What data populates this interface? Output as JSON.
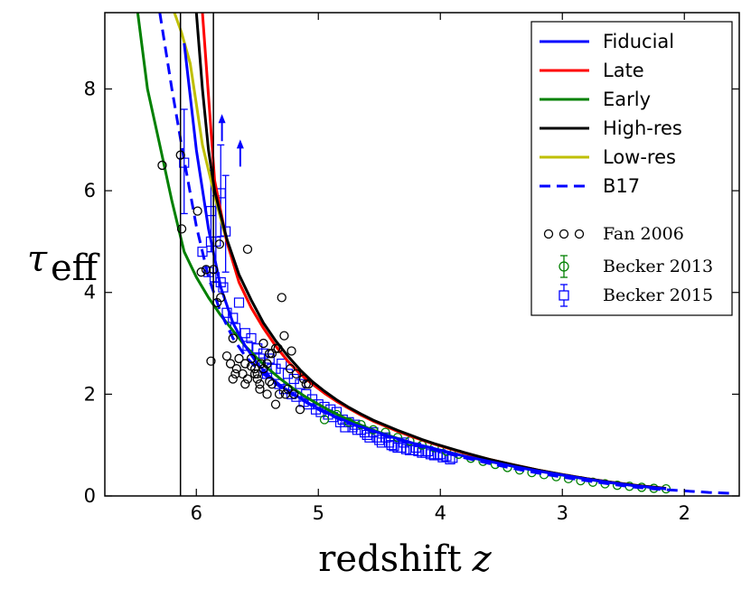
{
  "chart_data": {
    "type": "line",
    "title": "",
    "xlabel": "redshift",
    "xlabel_var": "z",
    "ylabel_main": "τ",
    "ylabel_sub": "eff",
    "xlim": [
      6.75,
      1.55
    ],
    "ylim": [
      0,
      9.5
    ],
    "x_inverted": true,
    "xticks": [
      6,
      5,
      4,
      3,
      2
    ],
    "xtick_labels": [
      "6",
      "5",
      "4",
      "3",
      "2"
    ],
    "yticks": [
      0,
      2,
      4,
      6,
      8
    ],
    "ytick_labels": [
      "0",
      "2",
      "4",
      "6",
      "8"
    ],
    "legend_position": "top-right",
    "vlines": [
      6.13,
      5.86
    ],
    "series": [
      {
        "name": "Fiducial",
        "color": "#0000ff",
        "dash": "solid",
        "x": [
          6.1,
          6.0,
          5.9,
          5.8,
          5.7,
          5.6,
          5.5,
          5.4,
          5.3,
          5.2,
          5.1,
          5.0,
          4.9,
          4.8,
          4.7,
          4.6,
          4.5,
          4.4,
          4.3,
          4.2,
          4.1,
          4.0,
          3.8,
          3.6,
          3.4,
          3.2,
          3.0,
          2.8,
          2.6,
          2.4,
          2.15
        ],
        "y": [
          8.9,
          6.8,
          5.25,
          4.1,
          3.4,
          2.95,
          2.6,
          2.35,
          2.15,
          2.0,
          1.85,
          1.72,
          1.6,
          1.5,
          1.4,
          1.32,
          1.24,
          1.16,
          1.09,
          1.02,
          0.96,
          0.9,
          0.78,
          0.68,
          0.58,
          0.49,
          0.41,
          0.33,
          0.26,
          0.2,
          0.14
        ]
      },
      {
        "name": "Late",
        "color": "#ff0000",
        "dash": "solid",
        "x": [
          5.95,
          5.85,
          5.75,
          5.65,
          5.55,
          5.45,
          5.35,
          5.25,
          5.15,
          5.05,
          4.95,
          4.85,
          4.75,
          4.65,
          4.55,
          4.45,
          4.35,
          4.25,
          4.15,
          4.05,
          3.8,
          3.6,
          3.4,
          3.2,
          3.0,
          2.8,
          2.6,
          2.4,
          2.15
        ],
        "y": [
          9.5,
          6.2,
          5.0,
          4.2,
          3.7,
          3.3,
          2.95,
          2.65,
          2.4,
          2.2,
          2.02,
          1.86,
          1.72,
          1.59,
          1.47,
          1.37,
          1.27,
          1.18,
          1.1,
          1.02,
          0.84,
          0.72,
          0.61,
          0.51,
          0.42,
          0.34,
          0.27,
          0.21,
          0.15
        ]
      },
      {
        "name": "Early",
        "color": "#008000",
        "dash": "solid",
        "x": [
          6.48,
          6.4,
          6.3,
          6.2,
          6.1,
          6.0,
          5.9,
          5.8,
          5.7,
          5.6,
          5.5,
          5.4,
          5.3,
          5.2,
          5.1,
          5.0,
          4.9,
          4.8,
          4.7,
          4.6,
          4.5,
          4.4,
          4.3,
          4.2,
          4.1,
          4.0,
          3.8,
          3.6,
          3.4,
          3.2,
          3.0,
          2.8,
          2.6,
          2.4,
          2.15
        ],
        "y": [
          9.5,
          8.0,
          6.9,
          5.8,
          4.8,
          4.3,
          3.9,
          3.55,
          3.25,
          2.95,
          2.7,
          2.48,
          2.28,
          2.1,
          1.94,
          1.8,
          1.67,
          1.55,
          1.44,
          1.34,
          1.25,
          1.17,
          1.09,
          1.02,
          0.96,
          0.9,
          0.78,
          0.68,
          0.58,
          0.49,
          0.41,
          0.33,
          0.26,
          0.2,
          0.14
        ]
      },
      {
        "name": "High-res",
        "color": "#000000",
        "dash": "solid",
        "x": [
          6.0,
          5.95,
          5.9,
          5.85,
          5.75,
          5.65,
          5.55,
          5.45,
          5.35,
          5.25,
          5.15,
          5.05,
          4.95,
          4.85,
          4.75,
          4.65,
          4.55,
          4.45,
          4.35,
          4.25,
          4.15,
          4.05,
          3.8,
          3.6,
          3.4,
          3.2,
          3.0,
          2.8,
          2.6,
          2.4,
          2.15
        ],
        "y": [
          9.5,
          8.0,
          6.8,
          6.0,
          5.05,
          4.35,
          3.85,
          3.4,
          3.05,
          2.75,
          2.48,
          2.25,
          2.06,
          1.89,
          1.74,
          1.61,
          1.49,
          1.39,
          1.29,
          1.2,
          1.11,
          1.03,
          0.85,
          0.72,
          0.61,
          0.51,
          0.42,
          0.34,
          0.27,
          0.21,
          0.15
        ]
      },
      {
        "name": "Low-res",
        "color": "#bfbf00",
        "dash": "solid",
        "x": [
          6.18,
          6.12,
          6.05,
          6.0,
          5.95,
          5.85,
          5.75,
          5.65,
          5.55,
          5.45,
          5.35,
          5.25,
          5.15,
          5.05,
          4.95,
          4.85,
          4.75,
          4.65,
          4.55,
          4.45,
          4.35,
          4.25,
          4.15,
          4.05,
          3.8,
          3.6,
          3.4,
          3.2,
          3.0,
          2.8,
          2.6,
          2.4,
          2.15
        ],
        "y": [
          9.5,
          9.1,
          8.5,
          7.7,
          6.9,
          5.9,
          5.0,
          4.2,
          3.7,
          3.3,
          2.95,
          2.65,
          2.4,
          2.2,
          2.02,
          1.86,
          1.72,
          1.59,
          1.47,
          1.37,
          1.27,
          1.18,
          1.1,
          1.02,
          0.84,
          0.72,
          0.61,
          0.51,
          0.42,
          0.34,
          0.27,
          0.21,
          0.15
        ]
      },
      {
        "name": "B17",
        "color": "#0000ff",
        "dash": "dashed",
        "x": [
          6.3,
          6.2,
          6.1,
          6.0,
          5.9,
          5.8,
          5.7,
          5.6,
          5.5,
          5.4,
          5.3,
          5.2,
          5.1,
          5.0,
          4.8,
          4.6,
          4.4,
          4.2,
          4.0,
          3.8,
          3.6,
          3.4,
          3.2,
          3.0,
          2.8,
          2.6,
          2.4,
          2.2,
          2.0,
          1.8,
          1.6
        ],
        "y": [
          9.5,
          8.0,
          6.6,
          5.3,
          4.3,
          3.6,
          3.1,
          2.75,
          2.5,
          2.3,
          2.12,
          1.98,
          1.84,
          1.7,
          1.48,
          1.3,
          1.14,
          1.0,
          0.87,
          0.75,
          0.64,
          0.54,
          0.45,
          0.37,
          0.3,
          0.23,
          0.17,
          0.13,
          0.1,
          0.07,
          0.05
        ]
      }
    ],
    "scatter": [
      {
        "name": "Fan 2006",
        "color": "#000000",
        "marker": "circle",
        "x": [
          6.28,
          6.13,
          6.12,
          5.99,
          5.96,
          5.92,
          5.86,
          5.83,
          5.8,
          5.75,
          5.72,
          5.7,
          5.67,
          5.65,
          5.62,
          5.6,
          5.58,
          5.55,
          5.52,
          5.5,
          5.48,
          5.45,
          5.42,
          5.4,
          5.38,
          5.35,
          5.32,
          5.3,
          5.28,
          5.25,
          5.22,
          5.2,
          5.18,
          5.15,
          5.12,
          5.1,
          5.08,
          5.6,
          5.55,
          5.5,
          5.45,
          5.4,
          5.35,
          5.48,
          5.42,
          5.38,
          5.58,
          5.52,
          5.47,
          5.33,
          5.27,
          5.23,
          5.7,
          5.68,
          5.88,
          5.81
        ],
        "y": [
          6.5,
          6.7,
          5.25,
          5.6,
          4.4,
          4.45,
          4.45,
          3.8,
          3.9,
          2.75,
          2.6,
          3.1,
          2.5,
          2.7,
          2.4,
          2.2,
          4.85,
          2.55,
          2.4,
          2.3,
          2.1,
          3.0,
          2.0,
          2.25,
          2.2,
          1.8,
          2.0,
          3.9,
          3.15,
          2.1,
          2.85,
          2.0,
          2.4,
          1.7,
          2.3,
          2.2,
          2.2,
          2.6,
          2.7,
          2.4,
          2.5,
          2.8,
          2.9,
          2.2,
          2.6,
          2.8,
          2.3,
          2.5,
          2.6,
          2.9,
          2.0,
          2.5,
          2.3,
          2.4,
          2.65,
          4.95
        ]
      },
      {
        "name": "Becker 2013",
        "color": "#008000",
        "marker": "circle",
        "x": [
          4.95,
          4.85,
          4.75,
          4.65,
          4.55,
          4.45,
          4.35,
          4.25,
          4.15,
          4.05,
          3.95,
          3.85,
          3.75,
          3.65,
          3.55,
          3.45,
          3.35,
          3.25,
          3.15,
          3.05,
          2.95,
          2.85,
          2.75,
          2.65,
          2.55,
          2.45,
          2.35,
          2.25,
          2.15
        ],
        "y": [
          1.5,
          1.6,
          1.45,
          1.4,
          1.3,
          1.25,
          1.15,
          1.08,
          1.0,
          0.95,
          0.88,
          0.82,
          0.74,
          0.68,
          0.62,
          0.56,
          0.51,
          0.46,
          0.42,
          0.38,
          0.34,
          0.3,
          0.27,
          0.24,
          0.21,
          0.19,
          0.17,
          0.15,
          0.14
        ]
      },
      {
        "name": "Becker 2015",
        "color": "#0000ff",
        "marker": "square",
        "x": [
          5.95,
          5.9,
          5.85,
          5.8,
          5.75,
          5.7,
          5.65,
          5.6,
          5.55,
          5.5,
          5.45,
          5.4,
          5.35,
          5.3,
          5.25,
          5.2,
          5.15,
          5.1,
          5.05,
          5.0,
          4.95,
          4.9,
          4.85,
          4.8,
          4.75,
          4.7,
          4.65,
          4.6,
          4.55,
          4.5,
          4.45,
          4.4,
          4.35,
          4.3,
          4.25,
          4.2,
          4.15,
          4.1,
          4.05,
          4.0,
          3.95,
          3.9,
          5.88,
          5.78,
          5.68,
          5.58,
          5.48,
          5.38,
          5.28,
          5.18,
          5.08,
          4.98,
          4.88,
          4.78,
          4.68,
          4.58,
          4.48,
          4.38,
          4.28,
          4.18,
          4.08,
          3.98,
          5.42,
          5.32,
          5.22,
          5.12,
          5.02,
          4.92,
          4.82,
          4.72,
          4.62,
          4.52,
          4.42,
          4.32,
          4.22,
          4.12,
          4.02,
          3.92
        ],
        "y": [
          4.8,
          4.4,
          4.3,
          4.2,
          3.6,
          3.5,
          3.8,
          3.2,
          3.1,
          2.9,
          2.8,
          2.7,
          2.5,
          2.6,
          2.4,
          2.3,
          2.2,
          2.0,
          1.9,
          1.8,
          1.75,
          1.7,
          1.65,
          1.5,
          1.45,
          1.4,
          1.3,
          1.2,
          1.25,
          1.1,
          1.15,
          1.0,
          0.95,
          1.05,
          0.9,
          0.95,
          0.85,
          0.88,
          0.8,
          0.82,
          0.78,
          0.75,
          5.0,
          4.1,
          3.3,
          2.95,
          2.7,
          2.5,
          2.1,
          1.95,
          1.8,
          1.65,
          1.55,
          1.35,
          1.3,
          1.15,
          1.05,
          0.98,
          0.92,
          0.88,
          0.82,
          0.76,
          2.4,
          2.2,
          2.0,
          1.85,
          1.7,
          1.6,
          1.45,
          1.35,
          1.25,
          1.15,
          1.05,
          0.95,
          0.9,
          0.85,
          0.8,
          0.72
        ]
      }
    ],
    "errorbars": [
      {
        "x": 6.1,
        "y": 6.55,
        "ylow": 5.55,
        "yhigh": 7.6
      },
      {
        "x": 5.88,
        "y": 5.6,
        "ylow": 4.8,
        "yhigh": 6.4
      },
      {
        "x": 5.84,
        "y": 5.0,
        "ylow": 4.2,
        "yhigh": 5.9
      },
      {
        "x": 5.8,
        "y": 5.95,
        "ylow": 5.1,
        "yhigh": 6.9
      },
      {
        "x": 5.76,
        "y": 5.2,
        "ylow": 4.4,
        "yhigh": 6.3
      }
    ],
    "lower_limit_arrows": [
      {
        "x": 5.79,
        "y": 7.4
      },
      {
        "x": 5.64,
        "y": 6.9
      }
    ]
  }
}
